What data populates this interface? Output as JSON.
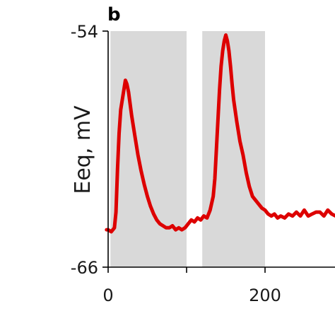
{
  "chart_data": {
    "type": "line",
    "panel_label": "b",
    "title": "",
    "xlabel": "",
    "ylabel": "Eeq, mV",
    "xlim": [
      0,
      290
    ],
    "ylim": [
      -66,
      -54
    ],
    "x_ticks": [
      0,
      100,
      200
    ],
    "x_tick_labels": [
      "0",
      "",
      "200"
    ],
    "y_ticks": [
      -54,
      -66
    ],
    "y_tick_labels": [
      "-54",
      "-66"
    ],
    "grid": false,
    "legend": "none",
    "line_color": "#dd0000",
    "shade_color": "#d9d9d9",
    "shaded_regions": [
      {
        "x_start": 3,
        "x_end": 100
      },
      {
        "x_start": 120,
        "x_end": 200
      }
    ],
    "series": [
      {
        "x": [
          -2,
          0,
          4,
          8,
          10,
          12,
          14,
          16,
          18,
          20,
          22,
          24,
          26,
          28,
          30,
          34,
          38,
          42,
          46,
          50,
          54,
          58,
          62,
          66,
          70,
          74,
          78,
          82,
          86,
          90,
          94,
          98,
          102,
          106,
          110,
          114,
          118,
          122,
          126,
          130,
          134,
          136,
          138,
          140,
          142,
          144,
          146,
          148,
          150,
          152,
          154,
          156,
          158,
          160,
          164,
          168,
          172,
          176,
          180,
          184,
          188,
          192,
          196,
          200,
          204,
          208,
          212,
          216,
          220,
          225,
          230,
          235,
          240,
          245,
          250,
          255,
          260,
          265,
          270,
          275,
          280,
          285,
          290
        ],
        "y": [
          -64.1,
          -64.1,
          -64.2,
          -64.0,
          -63.2,
          -61.0,
          -59.2,
          -58.0,
          -57.5,
          -57.0,
          -56.5,
          -56.7,
          -57.1,
          -57.7,
          -58.3,
          -59.3,
          -60.3,
          -61.1,
          -61.8,
          -62.4,
          -62.9,
          -63.3,
          -63.6,
          -63.8,
          -63.9,
          -64.0,
          -64.0,
          -63.9,
          -64.1,
          -64.0,
          -64.1,
          -64.0,
          -63.8,
          -63.6,
          -63.7,
          -63.5,
          -63.6,
          -63.4,
          -63.5,
          -63.1,
          -62.4,
          -61.5,
          -60.0,
          -58.5,
          -57.0,
          -55.8,
          -55.0,
          -54.5,
          -54.2,
          -54.5,
          -55.0,
          -55.8,
          -56.7,
          -57.5,
          -58.6,
          -59.6,
          -60.3,
          -61.2,
          -61.9,
          -62.4,
          -62.6,
          -62.8,
          -63.0,
          -63.1,
          -63.3,
          -63.4,
          -63.3,
          -63.5,
          -63.4,
          -63.5,
          -63.3,
          -63.4,
          -63.2,
          -63.4,
          -63.1,
          -63.4,
          -63.3,
          -63.2,
          -63.2,
          -63.4,
          -63.1,
          -63.3,
          -63.4
        ]
      }
    ]
  }
}
